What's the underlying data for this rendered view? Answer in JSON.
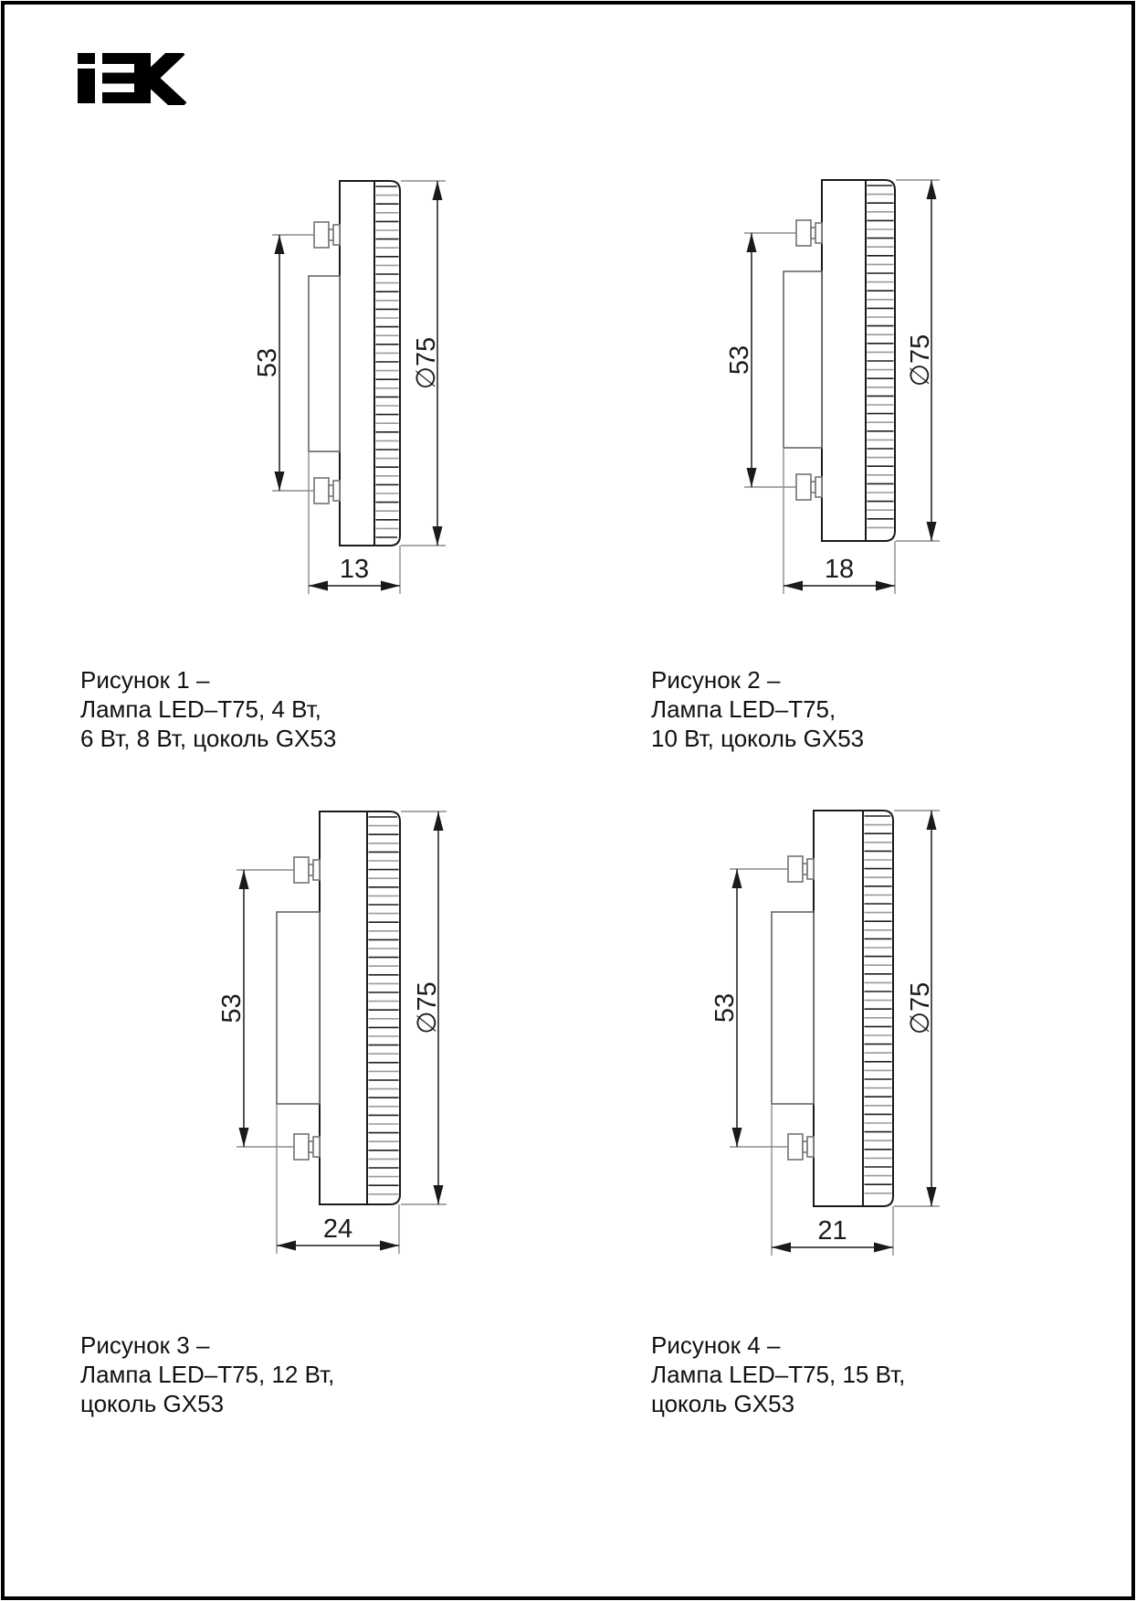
{
  "page": {
    "background": "#ffffff",
    "border_color": "#000000",
    "line_color": "#1a1a1a",
    "extension_line_color": "#8c8c8c"
  },
  "logo": {
    "label": "IEK"
  },
  "figures": [
    {
      "id": 1,
      "caption_lines": [
        "Рисунок 1 –",
        "Лампа LED–T75, 4 Вт,",
        "6 Вт, 8 Вт, цоколь GX53"
      ],
      "dims": {
        "pin_spacing": "53",
        "diameter": "∅75",
        "width": "13"
      }
    },
    {
      "id": 2,
      "caption_lines": [
        "Рисунок 2 –",
        "Лампа LED–T75,",
        "10 Вт, цоколь GX53"
      ],
      "dims": {
        "pin_spacing": "53",
        "diameter": "∅75",
        "width": "18"
      }
    },
    {
      "id": 3,
      "caption_lines": [
        "Рисунок 3 –",
        "Лампа LED–T75, 12 Вт,",
        "цоколь GX53"
      ],
      "dims": {
        "pin_spacing": "53",
        "diameter": "∅75",
        "width": "24"
      }
    },
    {
      "id": 4,
      "caption_lines": [
        "Рисунок 4 –",
        "Лампа LED–T75, 15 Вт,",
        "цоколь GX53"
      ],
      "dims": {
        "pin_spacing": "53",
        "diameter": "∅75",
        "width": "21"
      }
    }
  ]
}
